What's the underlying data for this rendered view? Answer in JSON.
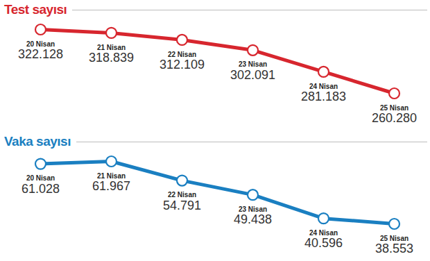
{
  "chart_data": [
    {
      "type": "line",
      "title": "Test sayısı",
      "categories": [
        "20 Nisan",
        "21 Nisan",
        "22 Nisan",
        "23 Nisan",
        "24 Nisan",
        "25 Nisan"
      ],
      "values": [
        322128,
        318839,
        312109,
        302091,
        281183,
        260280
      ],
      "value_labels": [
        "322.128",
        "318.839",
        "312.109",
        "302.091",
        "281.183",
        "260.280"
      ],
      "color": "#d7262e",
      "marker": "circle",
      "data_labels": true,
      "tick_labels": false,
      "grid": false
    },
    {
      "type": "line",
      "title": "Vaka sayısı",
      "categories": [
        "20 Nisan",
        "21 Nisan",
        "22 Nisan",
        "23 Nisan",
        "24 Nisan",
        "25 Nisan"
      ],
      "values": [
        61028,
        61967,
        54791,
        49438,
        40596,
        38553
      ],
      "value_labels": [
        "61.028",
        "61.967",
        "54.791",
        "49.438",
        "40.596",
        "38.553"
      ],
      "color": "#1a7fc1",
      "marker": "circle",
      "data_labels": true,
      "tick_labels": false,
      "grid": false
    }
  ]
}
